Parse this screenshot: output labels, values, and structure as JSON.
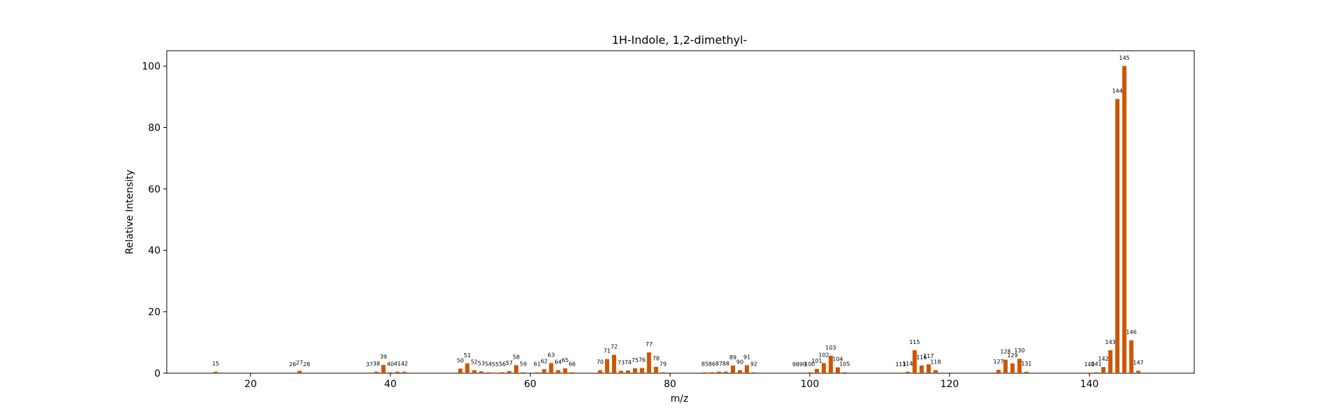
{
  "chart_data": {
    "type": "bar",
    "title": "1H-Indole, 1,2-dimethyl-",
    "xlabel": "m/z",
    "ylabel": "Relative Intensity",
    "xlim": [
      8,
      155
    ],
    "ylim": [
      0,
      105
    ],
    "xticks": [
      20,
      40,
      60,
      80,
      100,
      120,
      140
    ],
    "yticks": [
      0,
      20,
      40,
      60,
      80,
      100
    ],
    "bar_color": "#cc5500",
    "grid": false,
    "points": [
      {
        "mz": 15,
        "intensity": 0.5
      },
      {
        "mz": 26,
        "intensity": 0.2
      },
      {
        "mz": 27,
        "intensity": 0.8
      },
      {
        "mz": 28,
        "intensity": 0.2
      },
      {
        "mz": 37,
        "intensity": 0.2
      },
      {
        "mz": 38,
        "intensity": 0.5
      },
      {
        "mz": 39,
        "intensity": 2.7
      },
      {
        "mz": 40,
        "intensity": 0.3
      },
      {
        "mz": 41,
        "intensity": 0.5
      },
      {
        "mz": 42,
        "intensity": 0.5
      },
      {
        "mz": 50,
        "intensity": 1.5
      },
      {
        "mz": 51,
        "intensity": 3.2
      },
      {
        "mz": 52,
        "intensity": 1.0
      },
      {
        "mz": 53,
        "intensity": 0.6
      },
      {
        "mz": 54,
        "intensity": 0.3
      },
      {
        "mz": 55,
        "intensity": 0.2
      },
      {
        "mz": 56,
        "intensity": 0.3
      },
      {
        "mz": 57,
        "intensity": 0.7
      },
      {
        "mz": 58,
        "intensity": 2.6
      },
      {
        "mz": 59,
        "intensity": 0.3
      },
      {
        "mz": 61,
        "intensity": 0.3
      },
      {
        "mz": 62,
        "intensity": 1.3
      },
      {
        "mz": 63,
        "intensity": 3.3
      },
      {
        "mz": 64,
        "intensity": 1.0
      },
      {
        "mz": 65,
        "intensity": 1.6
      },
      {
        "mz": 66,
        "intensity": 0.3
      },
      {
        "mz": 70,
        "intensity": 1.0
      },
      {
        "mz": 71,
        "intensity": 4.6
      },
      {
        "mz": 72,
        "intensity": 6.0
      },
      {
        "mz": 73,
        "intensity": 0.8
      },
      {
        "mz": 74,
        "intensity": 0.9
      },
      {
        "mz": 75,
        "intensity": 1.6
      },
      {
        "mz": 76,
        "intensity": 1.7
      },
      {
        "mz": 77,
        "intensity": 6.8
      },
      {
        "mz": 78,
        "intensity": 2.1
      },
      {
        "mz": 79,
        "intensity": 0.3
      },
      {
        "mz": 85,
        "intensity": 0.3
      },
      {
        "mz": 86,
        "intensity": 0.3
      },
      {
        "mz": 87,
        "intensity": 0.5
      },
      {
        "mz": 88,
        "intensity": 0.5
      },
      {
        "mz": 89,
        "intensity": 2.5
      },
      {
        "mz": 90,
        "intensity": 1.0
      },
      {
        "mz": 91,
        "intensity": 2.6
      },
      {
        "mz": 92,
        "intensity": 0.3
      },
      {
        "mz": 98,
        "intensity": 0.2
      },
      {
        "mz": 99,
        "intensity": 0.2
      },
      {
        "mz": 100,
        "intensity": 0.3
      },
      {
        "mz": 101,
        "intensity": 1.4
      },
      {
        "mz": 102,
        "intensity": 3.3
      },
      {
        "mz": 103,
        "intensity": 5.7
      },
      {
        "mz": 104,
        "intensity": 1.9
      },
      {
        "mz": 105,
        "intensity": 0.3
      },
      {
        "mz": 113,
        "intensity": 0.2
      },
      {
        "mz": 114,
        "intensity": 0.5
      },
      {
        "mz": 115,
        "intensity": 7.5
      },
      {
        "mz": 116,
        "intensity": 2.5
      },
      {
        "mz": 117,
        "intensity": 2.9
      },
      {
        "mz": 118,
        "intensity": 1.0
      },
      {
        "mz": 127,
        "intensity": 1.1
      },
      {
        "mz": 128,
        "intensity": 4.4
      },
      {
        "mz": 129,
        "intensity": 3.2
      },
      {
        "mz": 130,
        "intensity": 4.7
      },
      {
        "mz": 131,
        "intensity": 0.5
      },
      {
        "mz": 140,
        "intensity": 0.2
      },
      {
        "mz": 141,
        "intensity": 0.3
      },
      {
        "mz": 142,
        "intensity": 2.0
      },
      {
        "mz": 143,
        "intensity": 7.5
      },
      {
        "mz": 144,
        "intensity": 89.3
      },
      {
        "mz": 145,
        "intensity": 100.0
      },
      {
        "mz": 146,
        "intensity": 10.7
      },
      {
        "mz": 147,
        "intensity": 0.8
      }
    ]
  }
}
